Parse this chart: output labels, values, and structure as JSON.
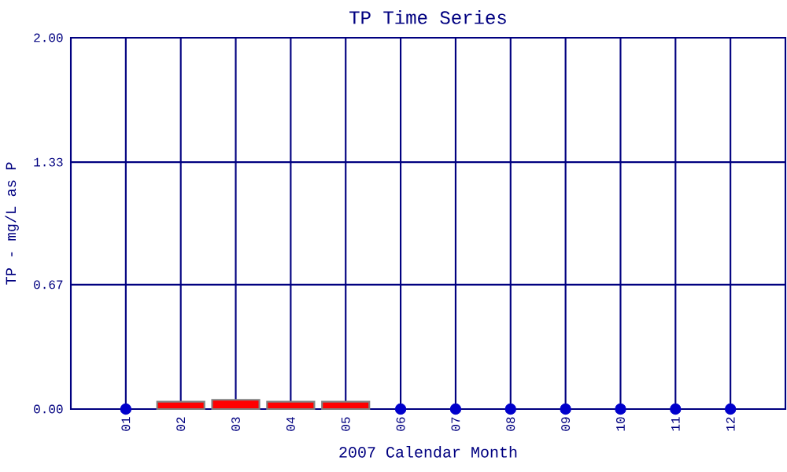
{
  "chart_data": {
    "type": "bar",
    "title": "TP Time Series",
    "xlabel": "2007 Calendar Month",
    "ylabel": "TP - mg/L as P",
    "categories": [
      "01",
      "02",
      "03",
      "04",
      "05",
      "06",
      "07",
      "08",
      "09",
      "10",
      "11",
      "12"
    ],
    "series": [
      {
        "color": "#ff0000",
        "values": [
          null,
          0.04,
          0.05,
          0.04,
          0.04,
          null,
          null,
          null,
          null,
          null,
          null,
          null
        ]
      },
      {
        "type": "scatter",
        "color": "#0000cc",
        "values": [
          0,
          null,
          null,
          null,
          null,
          0,
          0,
          0,
          0,
          0,
          0,
          0
        ]
      }
    ],
    "ylim": [
      0,
      2
    ],
    "yticks": [
      {
        "value": 0,
        "label": "0.00"
      },
      {
        "value": 0.67,
        "label": "0.67"
      },
      {
        "value": 1.33,
        "label": "1.33"
      },
      {
        "value": 2,
        "label": "2.00"
      }
    ],
    "grid": true,
    "marker": "circle"
  }
}
